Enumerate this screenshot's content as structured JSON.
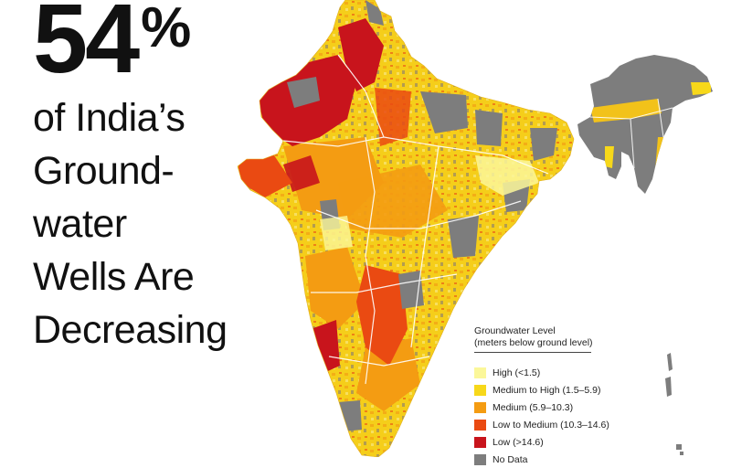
{
  "headline": {
    "stat_number": "54",
    "stat_symbol": "%",
    "lines": [
      "of India’s",
      "Ground-",
      "water",
      "Wells Are",
      "Decreasing"
    ]
  },
  "legend": {
    "title_line1": "Groundwater Level",
    "title_line2": "(meters below ground level)",
    "items": [
      {
        "label": "High (<1.5)",
        "color": "#fbf79a"
      },
      {
        "label": "Medium to High (1.5–5.9)",
        "color": "#f7d81a"
      },
      {
        "label": "Medium (5.9–10.3)",
        "color": "#f49c12"
      },
      {
        "label": "Low to Medium (10.3–14.6)",
        "color": "#ea4a12"
      },
      {
        "label": "Low (>14.6)",
        "color": "#c8141c"
      },
      {
        "label": "No Data",
        "color": "#7d7d7d"
      }
    ]
  },
  "map": {
    "region": "India",
    "land_color": "#f2c21a",
    "no_data_color": "#7d7d7d",
    "border_color": "#ffffff"
  }
}
